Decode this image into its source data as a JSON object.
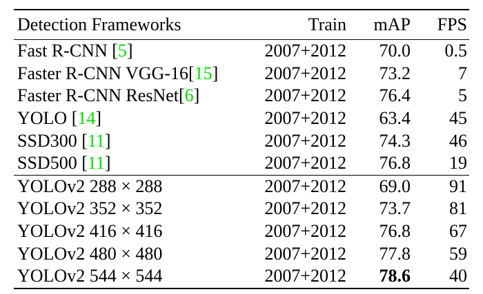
{
  "table": {
    "header": [
      "Detection Frameworks",
      "Train",
      "mAP",
      "FPS"
    ],
    "groups": [
      [
        {
          "framework": "Fast R-CNN ",
          "ref": [
            "[",
            "5",
            "]"
          ],
          "train": "2007+2012",
          "map": "70.0",
          "fps": 0.5
        },
        {
          "framework": "Faster R-CNN VGG-16",
          "ref": [
            "[",
            "15",
            "]"
          ],
          "train": "2007+2012",
          "map": "73.2",
          "fps": 7
        },
        {
          "framework": "Faster R-CNN ResNet",
          "ref": [
            "[",
            "6",
            "]"
          ],
          "train": "2007+2012",
          "map": "76.4",
          "fps": 5
        },
        {
          "framework": "YOLO ",
          "ref": [
            "[",
            "14",
            "]"
          ],
          "train": "2007+2012",
          "map": "63.4",
          "fps": 45
        },
        {
          "framework": "SSD300 ",
          "ref": [
            "[",
            "11",
            "]"
          ],
          "train": "2007+2012",
          "map": "74.3",
          "fps": 46
        },
        {
          "framework": "SSD500 ",
          "ref": [
            "[",
            "11",
            "]"
          ],
          "train": "2007+2012",
          "map": "76.8",
          "fps": 19
        }
      ],
      [
        {
          "framework": "YOLOv2 288 × 288",
          "train": "2007+2012",
          "map": "69.0",
          "fps": 91
        },
        {
          "framework": "YOLOv2 352 × 352",
          "train": "2007+2012",
          "map": "73.7",
          "fps": 81
        },
        {
          "framework": "YOLOv2 416 × 416",
          "train": "2007+2012",
          "map": "76.8",
          "fps": 67
        },
        {
          "framework": "YOLOv2 480 × 480",
          "train": "2007+2012",
          "map": "77.8",
          "fps": 59
        },
        {
          "framework": "YOLOv2 544 × 544",
          "train": "2007+2012",
          "map": "78.6",
          "map_bold": true,
          "fps": 40
        }
      ]
    ]
  }
}
